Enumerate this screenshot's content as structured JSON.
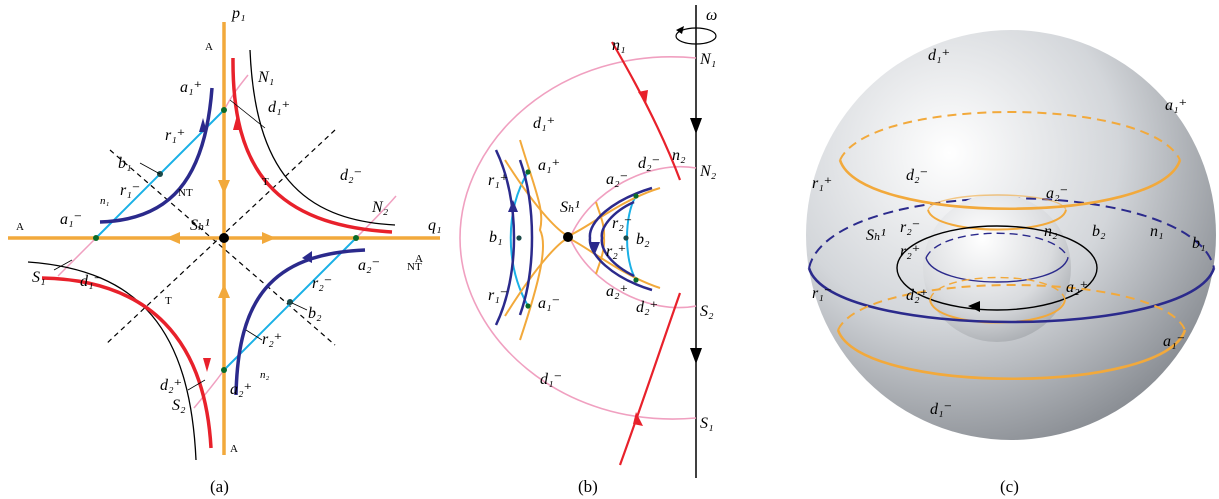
{
  "panel_a": {
    "caption": "(a)",
    "labels": {
      "p1": "p₁",
      "q1": "q₁",
      "A_top": "A",
      "A_left": "A",
      "A_right": "A",
      "A_bottom": "A",
      "T_upper": "T",
      "T_lower": "T",
      "NT_center": "NT",
      "NT_right": "NT",
      "a1p": "a₁⁺",
      "N1": "N₁",
      "d1p": "d₁⁺",
      "r1p": "r₁⁺",
      "b1": "b₁",
      "n1": "n₁",
      "r1m": "r₁⁻",
      "a1m": "a₁⁻",
      "Sh": "Sₕ¹",
      "S1": "S₁",
      "d1m": "d₁⁻",
      "d2m": "d₂⁻",
      "N2": "N₂",
      "a2m": "a₂⁻",
      "r2m": "r₂⁻",
      "b2": "b₂",
      "r2p": "r₂⁺",
      "d2p": "d₂⁺",
      "S2": "S₂",
      "a2p": "a₂⁺",
      "n2": "n₂"
    }
  },
  "panel_b": {
    "caption": "(b)",
    "labels": {
      "omega": "ω",
      "n1": "n₁",
      "N1": "N₁",
      "d1p": "d₁⁺",
      "a1p": "a₁⁺",
      "r1p": "r₁⁺",
      "b1": "b₁",
      "r1m": "r₁⁻",
      "a1m": "a₁⁻",
      "Sh": "Sₕ¹",
      "a2m": "a₂⁻",
      "d2m": "d₂⁻",
      "n2": "n₂",
      "N2": "N₂",
      "r2m": "r₂⁻",
      "r2p": "r₂⁺",
      "b2": "b₂",
      "a2p": "a₂⁺",
      "d2p": "d₂⁺",
      "S2": "S₂",
      "d1m": "d₁⁻",
      "S1": "S₁"
    }
  },
  "panel_c": {
    "caption": "(c)",
    "labels": {
      "d1p": "d₁⁺",
      "a1p": "a₁⁺",
      "r1p": "r₁⁺",
      "d2m": "d₂⁻",
      "a2m": "a₂⁻",
      "Sh": "Sₕ¹",
      "r2m": "r₂⁻",
      "r2p": "r₂⁺",
      "n2": "n₂",
      "b2": "b₂",
      "n1": "n₁",
      "b1": "b₁",
      "r1m": "r₁⁻",
      "d2p": "d₂⁺",
      "a2p": "a₂⁺",
      "a1m": "a₁⁻",
      "d1m": "d₁⁻"
    }
  }
}
